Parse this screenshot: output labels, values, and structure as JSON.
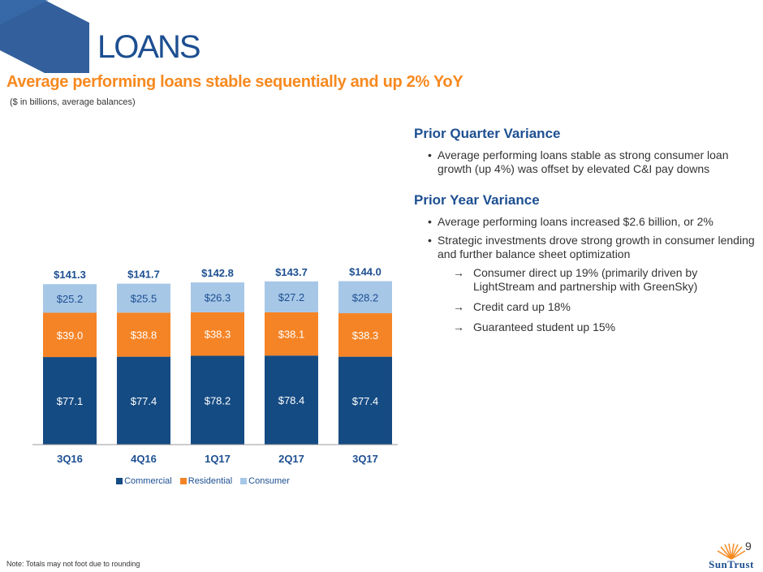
{
  "header": {
    "title": "LOANS",
    "subtitle": "Average performing loans stable sequentially and up 2% YoY",
    "units": "($ in billions, average balances)"
  },
  "colors": {
    "commercial": "#154b83",
    "residential": "#f58426",
    "consumer": "#a7c7e7",
    "title_blue": "#1d4f91",
    "subtitle_orange": "#f7891f"
  },
  "chart_data": {
    "type": "bar",
    "stacked": true,
    "categories": [
      "3Q16",
      "4Q16",
      "1Q17",
      "2Q17",
      "3Q17"
    ],
    "series": [
      {
        "name": "Commercial",
        "values": [
          77.1,
          77.4,
          78.2,
          78.4,
          77.4
        ],
        "labels": [
          "$77.1",
          "$77.4",
          "$78.2",
          "$78.4",
          "$77.4"
        ]
      },
      {
        "name": "Residential",
        "values": [
          39.0,
          38.8,
          38.3,
          38.1,
          38.3
        ],
        "labels": [
          "$39.0",
          "$38.8",
          "$38.3",
          "$38.1",
          "$38.3"
        ]
      },
      {
        "name": "Consumer",
        "values": [
          25.2,
          25.5,
          26.3,
          27.2,
          28.2
        ],
        "labels": [
          "$25.2",
          "$25.5",
          "$26.3",
          "$27.2",
          "$28.2"
        ]
      }
    ],
    "totals": [
      141.3,
      141.7,
      142.8,
      143.7,
      144.0
    ],
    "total_labels": [
      "$141.3",
      "$141.7",
      "$142.8",
      "$143.7",
      "$144.0"
    ],
    "legend_position": "bottom",
    "grid": false
  },
  "panel": {
    "quarter_heading": "Prior Quarter Variance",
    "quarter_bullets": [
      "Average performing loans stable as strong consumer loan growth (up 4%) was offset by elevated C&I pay downs"
    ],
    "year_heading": "Prior Year Variance",
    "year_bullets": [
      "Average performing loans increased $2.6 billion, or 2%",
      "Strategic investments drove strong growth in consumer lending and further balance sheet optimization"
    ],
    "arrow_symbol": "→",
    "year_subbullets": [
      "Consumer direct up 19% (primarily driven by LightStream and partnership with GreenSky)",
      "Credit card up 18%",
      "Guaranteed student up 15%"
    ]
  },
  "footer": {
    "note": "Note: Totals may not foot due to rounding",
    "page_number": "9",
    "brand": "SunTrust"
  }
}
